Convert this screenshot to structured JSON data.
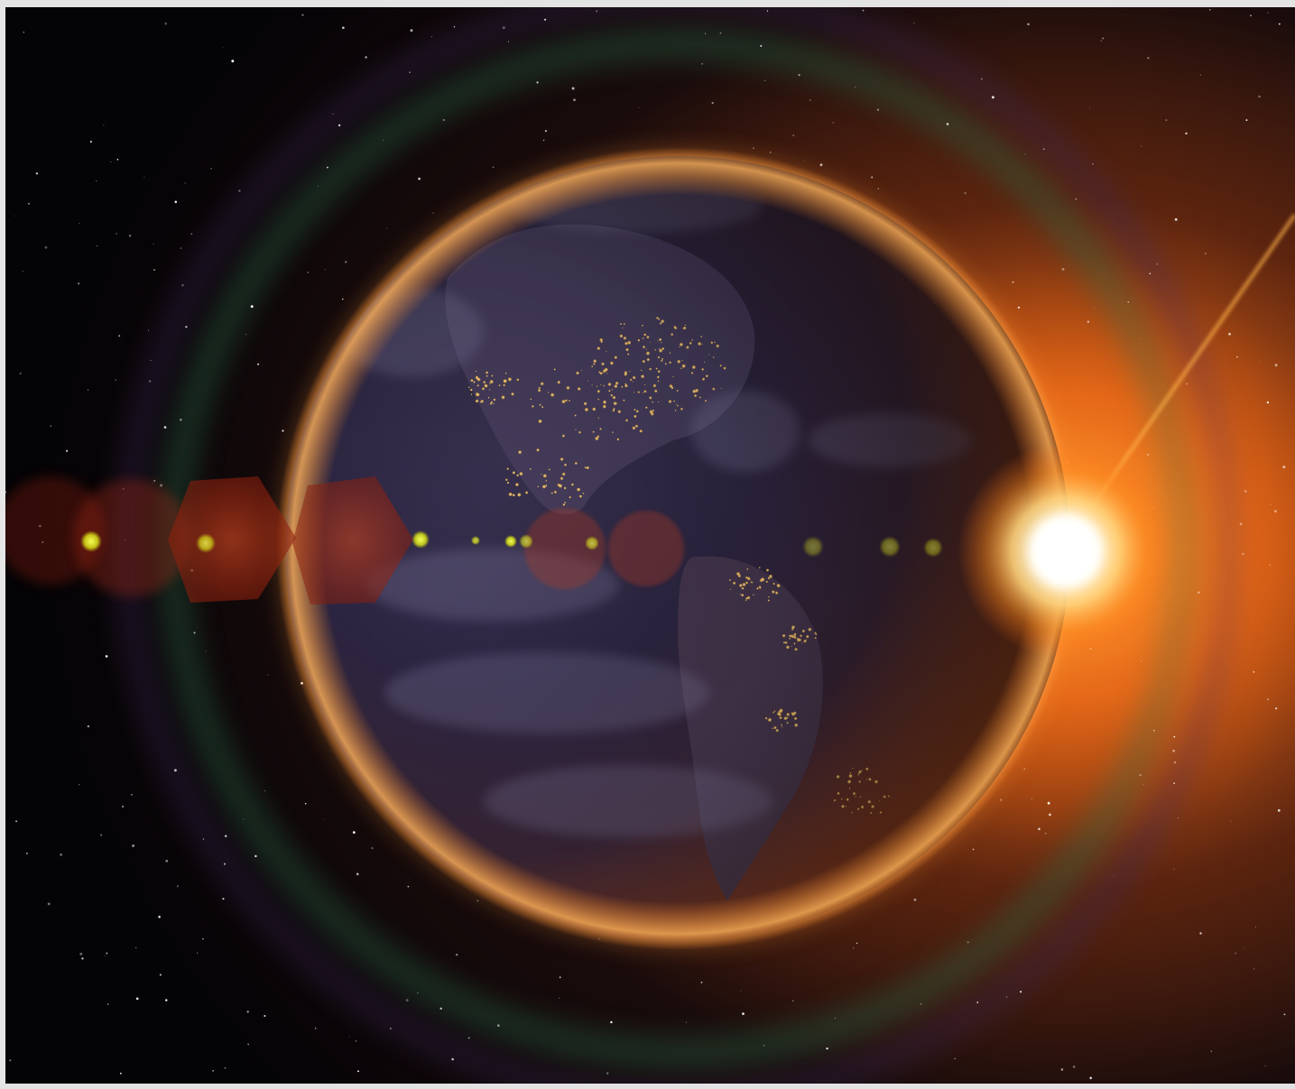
{
  "image": {
    "subject": "earth-at-night-with-sunrise",
    "colors": {
      "frame": "#e6e6e6",
      "space": "#050407",
      "sun_core": "#ffffff",
      "sun_glow": "#ff8a1e",
      "ocean": "#2a2344",
      "city_lights": "#ffc75a",
      "flare": "#c23a1c"
    }
  }
}
